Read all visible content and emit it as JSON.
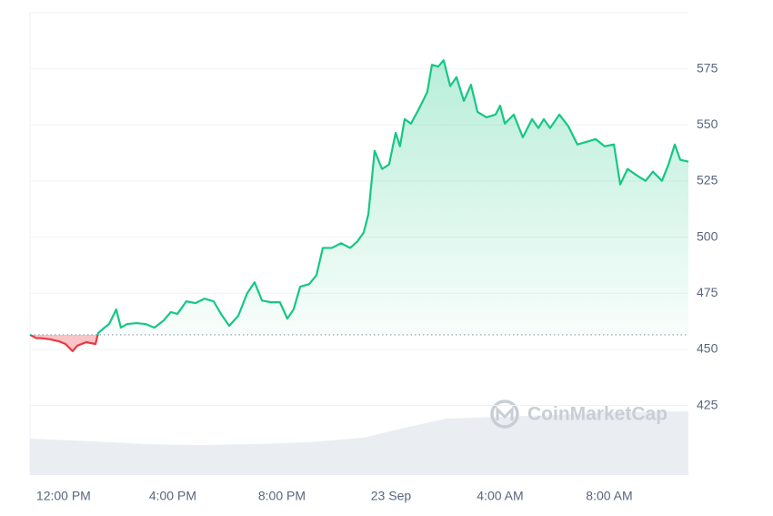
{
  "chart_data": {
    "type": "line",
    "x": [
      -1.23,
      -1,
      -0.83,
      -0.5,
      -0.17,
      0.07,
      0.33,
      0.5,
      0.83,
      1.17,
      1.27,
      1.5,
      1.67,
      1.93,
      2.1,
      2.33,
      2.67,
      3,
      3.33,
      3.67,
      3.93,
      4.17,
      4.5,
      4.83,
      5.17,
      5.5,
      5.77,
      6.07,
      6.4,
      6.73,
      7,
      7.27,
      7.6,
      7.93,
      8.2,
      8.43,
      8.67,
      9,
      9.27,
      9.5,
      9.83,
      10.17,
      10.5,
      10.77,
      11,
      11.17,
      11.4,
      11.67,
      11.93,
      12.17,
      12.33,
      12.5,
      12.73,
      13,
      13.17,
      13.33,
      13.5,
      13.73,
      13.93,
      14.17,
      14.4,
      14.67,
      14.93,
      15.17,
      15.5,
      15.83,
      16,
      16.17,
      16.5,
      16.83,
      17.17,
      17.4,
      17.6,
      17.83,
      18.17,
      18.5,
      18.83,
      19.17,
      19.5,
      19.83,
      20.17,
      20.4,
      20.67,
      21,
      21.33,
      21.6,
      21.93,
      22.17,
      22.4,
      22.6,
      22.9
    ],
    "series": [
      {
        "color": "#16c784",
        "down_color": "#ea3943",
        "values": [
          456.5,
          455,
          455,
          454.5,
          453.6,
          452.4,
          449.2,
          451.6,
          453.2,
          452.4,
          457.3,
          459.7,
          461.3,
          467.8,
          459.7,
          461.3,
          461.7,
          461.3,
          459.7,
          462.9,
          466.6,
          465.8,
          471.4,
          470.6,
          472.6,
          471.4,
          465.8,
          460.5,
          464.9,
          475,
          479.9,
          471.8,
          471,
          471,
          463.7,
          467.8,
          477.9,
          479.1,
          483.1,
          495.2,
          495.2,
          497.3,
          495.2,
          498.1,
          502.1,
          510.2,
          538.5,
          530.4,
          532.4,
          546.5,
          540.5,
          552.6,
          550.6,
          556.6,
          560.7,
          564.7,
          576.8,
          576,
          578.8,
          567.3,
          571.3,
          560.7,
          567.9,
          555.8,
          553.4,
          554.6,
          558.6,
          550.6,
          554.6,
          544.5,
          552.6,
          548.6,
          552.6,
          548.6,
          554.6,
          549.4,
          541.3,
          542.5,
          543.7,
          540.5,
          541.3,
          523.5,
          530.4,
          527.6,
          525.1,
          529.2,
          525.1,
          532.4,
          541.3,
          534.5,
          533.6
        ]
      }
    ],
    "baseline": 456.5,
    "xlim": [
      -1.23,
      22.9
    ],
    "xticks": [
      {
        "value": 0,
        "label": "12:00 PM"
      },
      {
        "value": 4,
        "label": "4:00 PM"
      },
      {
        "value": 8,
        "label": "8:00 PM"
      },
      {
        "value": 12,
        "label": "23 Sep"
      },
      {
        "value": 16,
        "label": "4:00 AM"
      },
      {
        "value": 20,
        "label": "8:00 AM"
      }
    ],
    "ylim": [
      394,
      600
    ],
    "yticks": [
      425,
      450,
      475,
      500,
      525,
      550,
      575
    ],
    "grid": true,
    "volume": {
      "color": "#eaedf2",
      "ylim": [
        0,
        100
      ],
      "x": [
        -1.23,
        1,
        3,
        5,
        7,
        9,
        11,
        12.5,
        14,
        16,
        18,
        20,
        22.9
      ],
      "values": [
        7.9,
        7.3,
        6.7,
        6.5,
        6.7,
        7.1,
        8.1,
        10.2,
        12.2,
        12.6,
        13.0,
        13.6,
        13.8
      ]
    },
    "watermark": "CoinMarketCap"
  }
}
